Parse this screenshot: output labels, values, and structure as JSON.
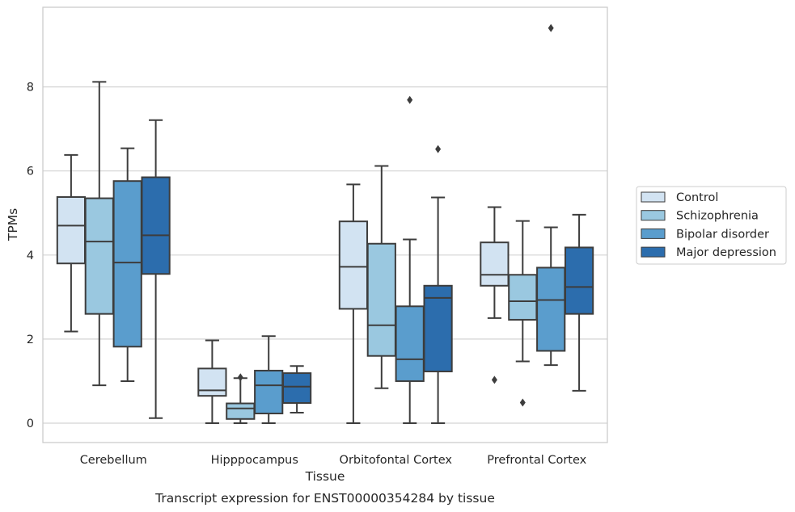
{
  "chart_data": {
    "type": "box",
    "title": "",
    "caption": "Transcript expression for ENST00000354284 by tissue",
    "xlabel": "Tissue",
    "ylabel": "TPMs",
    "ylim": [
      -0.45,
      9.75
    ],
    "yticks": [
      "0",
      "2",
      "4",
      "6",
      "8"
    ],
    "grid": "horizontal",
    "legend_position": "right",
    "categories": [
      "Cerebellum",
      "Hipppocampus",
      "Orbitofontal Cortex",
      "Prefrontal Cortex"
    ],
    "series": [
      {
        "name": "Control",
        "color": "#d2e3f2",
        "boxes": [
          {
            "whislo": 2.18,
            "q1": 3.8,
            "med": 4.7,
            "q3": 5.38,
            "whishi": 6.38,
            "fliers": []
          },
          {
            "whislo": 0.0,
            "q1": 0.65,
            "med": 0.78,
            "q3": 1.3,
            "whishi": 1.97,
            "fliers": []
          },
          {
            "whislo": 0.0,
            "q1": 2.72,
            "med": 3.72,
            "q3": 4.8,
            "whishi": 5.68,
            "fliers": []
          },
          {
            "whislo": 2.5,
            "q1": 3.27,
            "med": 3.53,
            "q3": 4.3,
            "whishi": 5.14,
            "fliers": [
              1.03
            ]
          }
        ]
      },
      {
        "name": "Schizophrenia",
        "color": "#9ac8e0",
        "boxes": [
          {
            "whislo": 0.9,
            "q1": 2.6,
            "med": 4.32,
            "q3": 5.35,
            "whishi": 8.12,
            "fliers": []
          },
          {
            "whislo": 0.0,
            "q1": 0.1,
            "med": 0.35,
            "q3": 0.47,
            "whishi": 1.07,
            "fliers": [
              1.09
            ]
          },
          {
            "whislo": 0.83,
            "q1": 1.6,
            "med": 2.33,
            "q3": 4.27,
            "whishi": 6.12,
            "fliers": []
          },
          {
            "whislo": 1.47,
            "q1": 2.46,
            "med": 2.9,
            "q3": 3.53,
            "whishi": 4.81,
            "fliers": [
              0.49
            ]
          }
        ]
      },
      {
        "name": "Bipolar disorder",
        "color": "#5a9dcd",
        "boxes": [
          {
            "whislo": 1.0,
            "q1": 1.82,
            "med": 3.82,
            "q3": 5.76,
            "whishi": 6.54,
            "fliers": []
          },
          {
            "whislo": 0.0,
            "q1": 0.23,
            "med": 0.9,
            "q3": 1.25,
            "whishi": 2.07,
            "fliers": []
          },
          {
            "whislo": 0.0,
            "q1": 1.0,
            "med": 1.52,
            "q3": 2.78,
            "whishi": 4.37,
            "fliers": [
              7.69
            ]
          },
          {
            "whislo": 1.38,
            "q1": 1.72,
            "med": 2.93,
            "q3": 3.7,
            "whishi": 4.66,
            "fliers": [
              9.4
            ]
          }
        ]
      },
      {
        "name": "Major depression",
        "color": "#2c6dad",
        "boxes": [
          {
            "whislo": 0.12,
            "q1": 3.55,
            "med": 4.47,
            "q3": 5.85,
            "whishi": 7.21,
            "fliers": []
          },
          {
            "whislo": 0.25,
            "q1": 0.48,
            "med": 0.87,
            "q3": 1.19,
            "whishi": 1.36,
            "fliers": []
          },
          {
            "whislo": 0.0,
            "q1": 1.23,
            "med": 2.98,
            "q3": 3.27,
            "whishi": 5.37,
            "fliers": [
              6.52
            ]
          },
          {
            "whislo": 0.77,
            "q1": 2.6,
            "med": 3.24,
            "q3": 4.18,
            "whishi": 4.96,
            "fliers": []
          }
        ]
      }
    ]
  }
}
